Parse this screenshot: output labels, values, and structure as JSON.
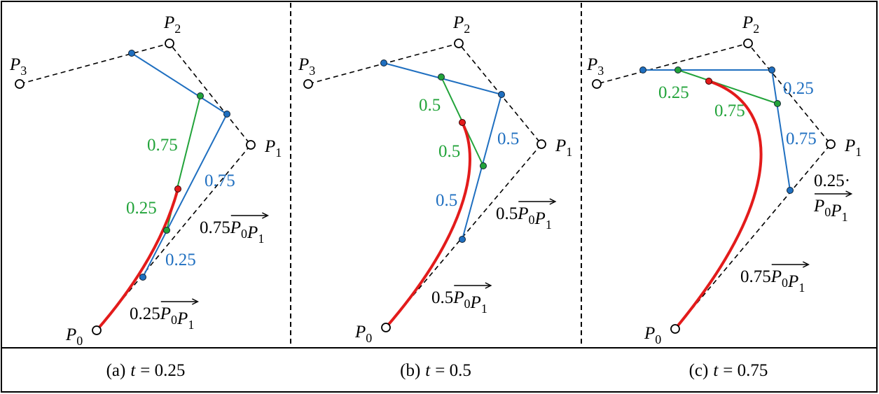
{
  "panels": [
    {
      "points": [
        {
          "base": "P",
          "sub": "0"
        },
        {
          "base": "P",
          "sub": "1"
        },
        {
          "base": "P",
          "sub": "2"
        },
        {
          "base": "P",
          "sub": "3"
        }
      ],
      "green_ratios": [
        "0.75",
        "0.25"
      ],
      "blue_ratios": [
        "0.75",
        "0.25"
      ],
      "vectors": [
        {
          "coef": "0.75",
          "terms": [
            {
              "base": "P",
              "sub": "0"
            },
            {
              "base": "P",
              "sub": "1"
            }
          ]
        },
        {
          "coef": "0.25",
          "terms": [
            {
              "base": "P",
              "sub": "0"
            },
            {
              "base": "P",
              "sub": "1"
            }
          ]
        }
      ],
      "caption": {
        "label": "(a)",
        "variable": "t",
        "value": "= 0.25"
      }
    },
    {
      "points": [
        {
          "base": "P",
          "sub": "0"
        },
        {
          "base": "P",
          "sub": "1"
        },
        {
          "base": "P",
          "sub": "2"
        },
        {
          "base": "P",
          "sub": "3"
        }
      ],
      "green_ratios": [
        "0.5",
        "0.5"
      ],
      "blue_ratios": [
        "0.5",
        "0.5"
      ],
      "vectors": [
        {
          "coef": "0.5",
          "terms": [
            {
              "base": "P",
              "sub": "0"
            },
            {
              "base": "P",
              "sub": "1"
            }
          ]
        },
        {
          "coef": "0.5",
          "terms": [
            {
              "base": "P",
              "sub": "0"
            },
            {
              "base": "P",
              "sub": "1"
            }
          ]
        }
      ],
      "caption": {
        "label": "(b)",
        "variable": "t",
        "value": "= 0.5"
      }
    },
    {
      "points": [
        {
          "base": "P",
          "sub": "0"
        },
        {
          "base": "P",
          "sub": "1"
        },
        {
          "base": "P",
          "sub": "2"
        },
        {
          "base": "P",
          "sub": "3"
        }
      ],
      "green_ratios": [
        "0.25",
        "0.75"
      ],
      "blue_ratios": [
        "0.25",
        "0.75"
      ],
      "vectors": [
        {
          "coef": "0.25·",
          "terms": [
            {
              "base": "P",
              "sub": "0"
            },
            {
              "base": "P",
              "sub": "1"
            }
          ]
        },
        {
          "coef": "0.75",
          "terms": [
            {
              "base": "P",
              "sub": "0"
            },
            {
              "base": "P",
              "sub": "1"
            }
          ]
        }
      ],
      "caption": {
        "label": "(c)",
        "variable": "t",
        "value": "= 0.75"
      }
    }
  ]
}
